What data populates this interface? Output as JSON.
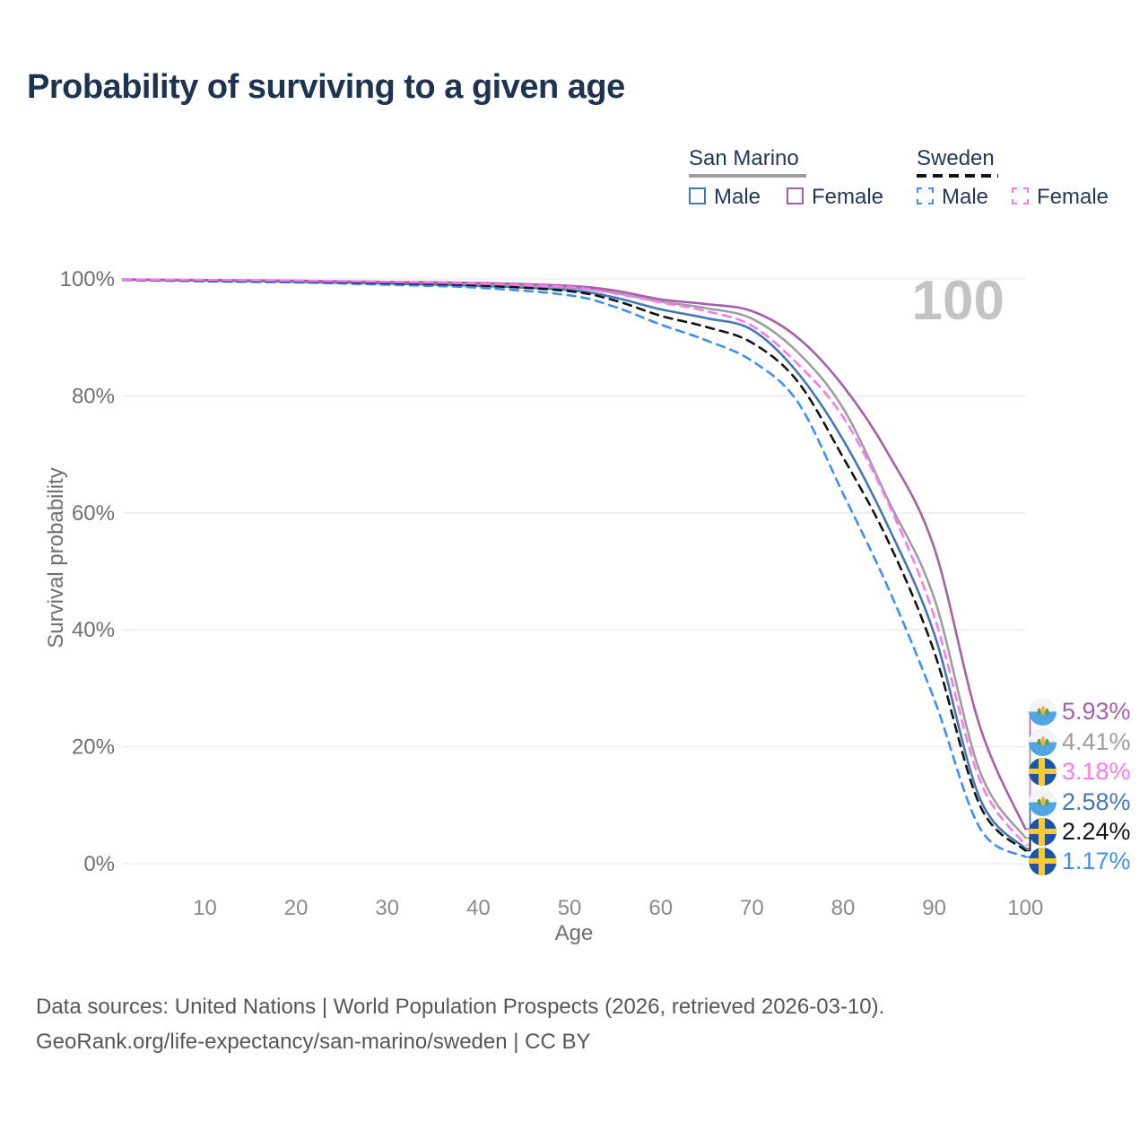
{
  "title": "Probability of surviving to a given age",
  "watermark_age": "100",
  "legend": {
    "groups": [
      {
        "label": "San Marino",
        "line_style": "solid",
        "underline_color": "#9e9e9e",
        "items": [
          {
            "label": "Male",
            "color": "#4377b6"
          },
          {
            "label": "Female",
            "color": "#a55fab"
          }
        ]
      },
      {
        "label": "Sweden",
        "line_style": "dashed",
        "underline_color": "#141414",
        "items": [
          {
            "label": "Male",
            "color": "#3f8df5"
          },
          {
            "label": "Female",
            "color": "#f97af0"
          }
        ]
      }
    ]
  },
  "chart_data": {
    "type": "line",
    "title": "Probability of surviving to a given age",
    "xlabel": "Age",
    "ylabel": "Survival probability",
    "xlim": [
      1,
      100
    ],
    "ylim": [
      0,
      100
    ],
    "x_ticks": [
      10,
      20,
      30,
      40,
      50,
      60,
      70,
      80,
      90,
      100
    ],
    "y_ticks": [
      0,
      20,
      40,
      60,
      80,
      100
    ],
    "y_tick_suffix": "%",
    "grid": "horizontal gridlines only",
    "legend_position": "top-right",
    "age_counter": "100",
    "ages": [
      1,
      10,
      20,
      30,
      40,
      50,
      55,
      60,
      65,
      70,
      75,
      80,
      85,
      90,
      95,
      100
    ],
    "series": [
      {
        "name": "San Marino Female",
        "country": "San Marino",
        "sex": "Female",
        "flag": "san-marino",
        "color": "#a55fab",
        "dashed": false,
        "end_label": "5.93%",
        "end_value": 5.93,
        "values": [
          99.9,
          99.8,
          99.7,
          99.5,
          99.3,
          98.8,
          98.0,
          96.5,
          95.7,
          94.5,
          90.0,
          81.7,
          70.0,
          54.0,
          23.5,
          5.93
        ]
      },
      {
        "name": "San Marino Total",
        "country": "San Marino",
        "sex": "Both",
        "flag": "san-marino",
        "color": "#9e9e9e",
        "dashed": false,
        "end_label": "4.41%",
        "end_value": 4.41,
        "values": [
          99.9,
          99.75,
          99.6,
          99.45,
          99.1,
          98.5,
          97.6,
          96.1,
          95.0,
          93.2,
          87.5,
          77.9,
          62.0,
          45.4,
          15.8,
          4.41
        ]
      },
      {
        "name": "Sweden Female",
        "country": "Sweden",
        "sex": "Female",
        "flag": "sweden",
        "color": "#f97af0",
        "dashed": true,
        "end_label": "3.18%",
        "end_value": 3.18,
        "values": [
          99.9,
          99.8,
          99.7,
          99.5,
          99.2,
          98.6,
          97.5,
          96.0,
          94.5,
          92.0,
          85.5,
          76.4,
          61.5,
          42.3,
          14.3,
          3.18
        ]
      },
      {
        "name": "San Marino Male",
        "country": "San Marino",
        "sex": "Male",
        "flag": "san-marino",
        "color": "#4377b6",
        "dashed": false,
        "end_label": "2.58%",
        "end_value": 2.58,
        "values": [
          99.9,
          99.7,
          99.5,
          99.2,
          98.8,
          98.1,
          96.8,
          94.8,
          93.3,
          91.3,
          84.0,
          72.5,
          57.5,
          39.3,
          11.2,
          2.58
        ]
      },
      {
        "name": "Sweden Total",
        "country": "Sweden",
        "sex": "Both",
        "flag": "sweden",
        "color": "#141414",
        "dashed": true,
        "end_label": "2.24%",
        "end_value": 2.24,
        "values": [
          99.9,
          99.7,
          99.6,
          99.3,
          98.9,
          97.9,
          96.3,
          93.7,
          91.8,
          89.1,
          82.5,
          69.5,
          55.0,
          36.2,
          10.0,
          2.24
        ]
      },
      {
        "name": "Sweden Male",
        "country": "Sweden",
        "sex": "Male",
        "flag": "sweden",
        "color": "#3f8df5",
        "dashed": true,
        "end_label": "1.17%",
        "end_value": 1.17,
        "values": [
          99.8,
          99.6,
          99.4,
          99.0,
          98.5,
          97.2,
          95.2,
          92.2,
          89.5,
          86.0,
          79.0,
          63.3,
          47.0,
          28.1,
          6.1,
          1.17
        ]
      }
    ]
  },
  "footer": {
    "line1": "Data sources: United Nations | World Population Prospects (2026, retrieved 2026-03-10).",
    "line2": "GeoRank.org/life-expectancy/san-marino/sweden | CC BY"
  }
}
